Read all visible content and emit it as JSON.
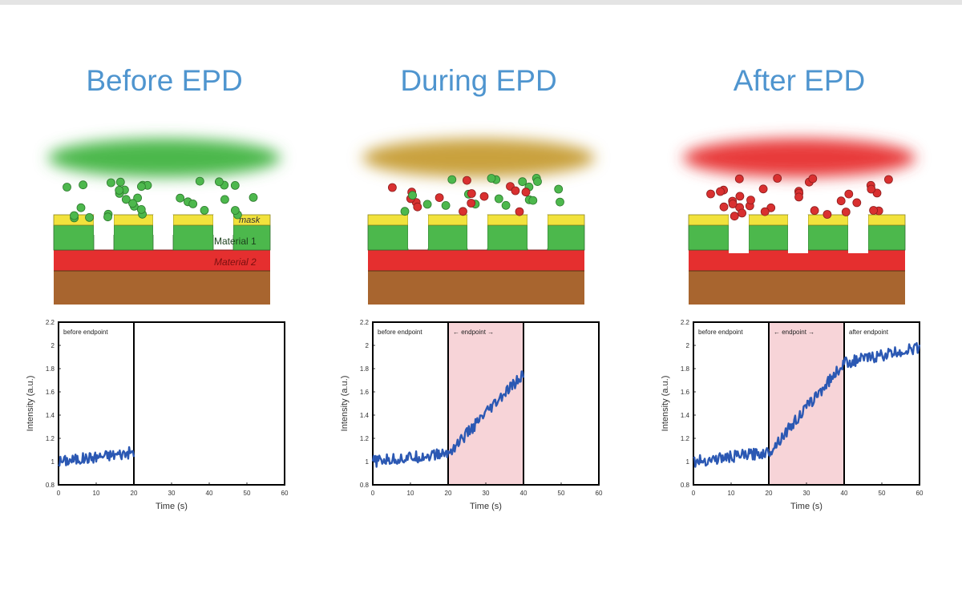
{
  "panels": [
    {
      "title": "Before EPD",
      "plasma_color": "#4cb84c",
      "mask_label": "mask",
      "material1_label": "Material 1",
      "material2_label": "Material 2",
      "trench_depth": 0.25,
      "chart_data": {
        "type": "line",
        "xlabel": "Time (s)",
        "ylabel": "Intensity (a.u.)",
        "xlim": [
          0,
          60
        ],
        "ylim": [
          0.8,
          2.2
        ],
        "xticks": [
          0,
          10,
          20,
          30,
          40,
          50,
          60
        ],
        "yticks": [
          0.8,
          1,
          1.2,
          1.4,
          1.6,
          1.8,
          2,
          2.2
        ],
        "series": [
          {
            "x": [
              0,
              20
            ],
            "y": [
              1.0,
              1.08
            ]
          }
        ],
        "region_labels": [
          "before endpoint"
        ],
        "dividers": [
          20
        ],
        "highlight": null,
        "line_color": "#2b58b3",
        "highlight_color": "#f7d4d8"
      }
    },
    {
      "title": "During EPD",
      "plasma_color": "#c9a13c",
      "trench_depth": 0.7,
      "chart_data": {
        "type": "line",
        "xlabel": "Time (s)",
        "ylabel": "Intensity (a.u.)",
        "xlim": [
          0,
          60
        ],
        "ylim": [
          0.8,
          2.2
        ],
        "xticks": [
          0,
          10,
          20,
          30,
          40,
          50,
          60
        ],
        "yticks": [
          0.8,
          1,
          1.2,
          1.4,
          1.6,
          1.8,
          2,
          2.2
        ],
        "series": [
          {
            "x": [
              0,
              20,
              40
            ],
            "y": [
              1.0,
              1.07,
              1.75
            ]
          }
        ],
        "region_labels": [
          "before endpoint",
          "← endpoint →"
        ],
        "dividers": [
          20,
          40
        ],
        "highlight": [
          20,
          40
        ],
        "line_color": "#2b58b3",
        "highlight_color": "#f7d4d8"
      }
    },
    {
      "title": "After EPD",
      "plasma_color": "#e83a3a",
      "trench_depth": 1.0,
      "chart_data": {
        "type": "line",
        "xlabel": "Time (s)",
        "ylabel": "Intensity (a.u.)",
        "xlim": [
          0,
          60
        ],
        "ylim": [
          0.8,
          2.2
        ],
        "xticks": [
          0,
          10,
          20,
          30,
          40,
          50,
          60
        ],
        "yticks": [
          0.8,
          1,
          1.2,
          1.4,
          1.6,
          1.8,
          2,
          2.2
        ],
        "series": [
          {
            "x": [
              0,
              20,
              40,
              60
            ],
            "y": [
              1.0,
              1.08,
              1.85,
              1.98
            ]
          }
        ],
        "region_labels": [
          "before endpoint",
          "← endpoint →",
          "after endpoint"
        ],
        "dividers": [
          20,
          40
        ],
        "highlight": [
          20,
          40
        ],
        "line_color": "#2b58b3",
        "highlight_color": "#f7d4d8"
      }
    }
  ],
  "colors": {
    "mask": "#f2e23c",
    "material1": "#4cb84c",
    "material2": "#e52f2f",
    "substrate": "#a8652f",
    "particle_green": "#4db84d",
    "particle_red": "#d93030"
  }
}
